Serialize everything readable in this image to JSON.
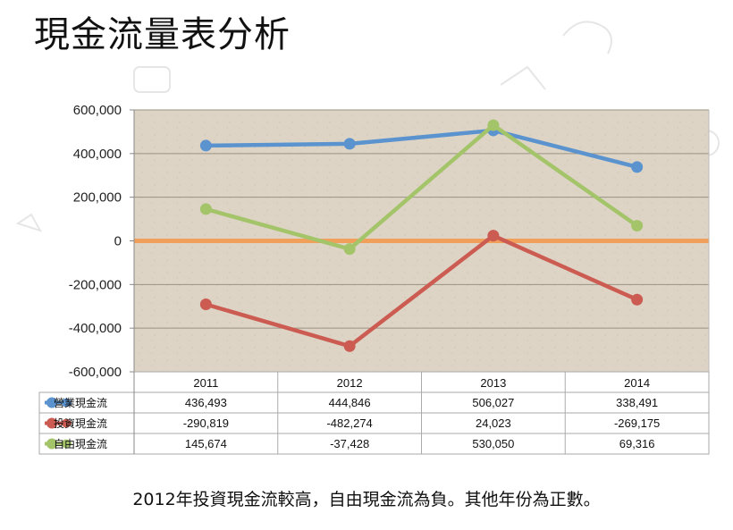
{
  "slide": {
    "title": "現金流量表分析",
    "caption": "2012年投資現金流較高，自由現金流為負。其他年份為正數。"
  },
  "chart_data": {
    "type": "line",
    "title": "",
    "xlabel": "",
    "ylabel": "",
    "categories": [
      "2011",
      "2012",
      "2013",
      "2014"
    ],
    "ylim": [
      -600000,
      600000
    ],
    "yticks": [
      600000,
      400000,
      200000,
      0,
      -200000,
      -400000,
      -600000
    ],
    "ytick_labels": [
      "600,000",
      "400,000",
      "200,000",
      "0",
      "-200,000",
      "-400,000",
      "-600,000"
    ],
    "grid": true,
    "legend": "data-table-left",
    "series": [
      {
        "name": "營業現金流",
        "color": "#5b93cf",
        "values": [
          436493,
          444846,
          506027,
          338491
        ],
        "labels": [
          "436,493",
          "444,846",
          "506,027",
          "338,491"
        ]
      },
      {
        "name": "投資現金流",
        "color": "#cc5b52",
        "values": [
          -290819,
          -482274,
          24023,
          -269175
        ],
        "labels": [
          "-290,819",
          "-482,274",
          "24,023",
          "-269,175"
        ]
      },
      {
        "name": "自由現金流",
        "color": "#a4c46a",
        "values": [
          145674,
          -37428,
          530050,
          69316
        ],
        "labels": [
          "145,674",
          "-37,428",
          "530,050",
          "69,316"
        ]
      }
    ],
    "zero_line_color": "#f0a05a",
    "plot_background": "#ddd3c4"
  }
}
